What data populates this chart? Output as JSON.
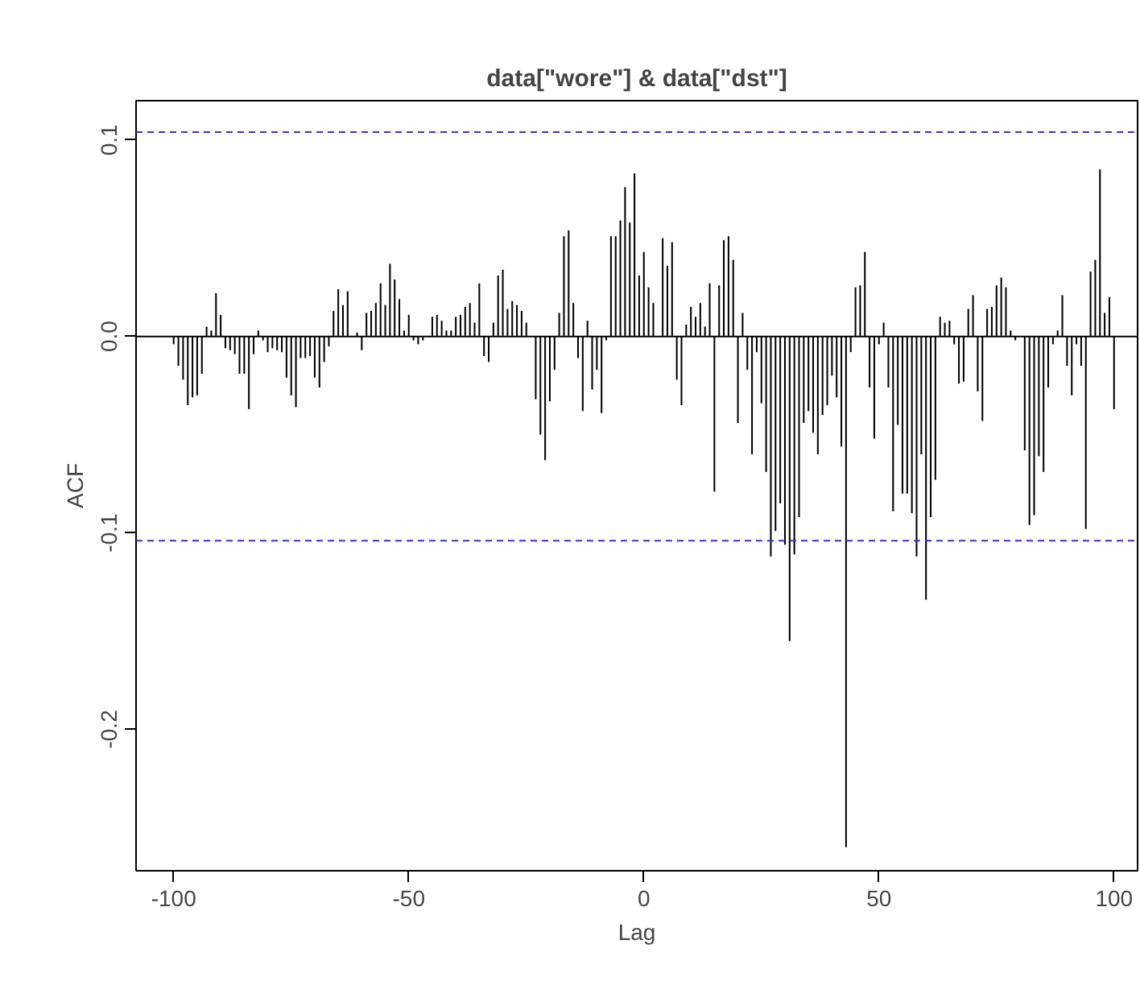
{
  "chart_data": {
    "type": "bar",
    "title": "data[\"wore\"] & data[\"dst\"]",
    "xlabel": "Lag",
    "ylabel": "ACF",
    "color": "#000000",
    "x": [
      -100,
      -99,
      -98,
      -97,
      -96,
      -95,
      -94,
      -93,
      -92,
      -91,
      -90,
      -89,
      -88,
      -87,
      -86,
      -85,
      -84,
      -83,
      -82,
      -81,
      -80,
      -79,
      -78,
      -77,
      -76,
      -75,
      -74,
      -73,
      -72,
      -71,
      -70,
      -69,
      -68,
      -67,
      -66,
      -65,
      -64,
      -63,
      -62,
      -61,
      -60,
      -59,
      -58,
      -57,
      -56,
      -55,
      -54,
      -53,
      -52,
      -51,
      -50,
      -49,
      -48,
      -47,
      -46,
      -45,
      -44,
      -43,
      -42,
      -41,
      -40,
      -39,
      -38,
      -37,
      -36,
      -35,
      -34,
      -33,
      -32,
      -31,
      -30,
      -29,
      -28,
      -27,
      -26,
      -25,
      -24,
      -23,
      -22,
      -21,
      -20,
      -19,
      -18,
      -17,
      -16,
      -15,
      -14,
      -13,
      -12,
      -11,
      -10,
      -9,
      -8,
      -7,
      -6,
      -5,
      -4,
      -3,
      -2,
      -1,
      0,
      1,
      2,
      3,
      4,
      5,
      6,
      7,
      8,
      9,
      10,
      11,
      12,
      13,
      14,
      15,
      16,
      17,
      18,
      19,
      20,
      21,
      22,
      23,
      24,
      25,
      26,
      27,
      28,
      29,
      30,
      31,
      32,
      33,
      34,
      35,
      36,
      37,
      38,
      39,
      40,
      41,
      42,
      43,
      44,
      45,
      46,
      47,
      48,
      49,
      50,
      51,
      52,
      53,
      54,
      55,
      56,
      57,
      58,
      59,
      60,
      61,
      62,
      63,
      64,
      65,
      66,
      67,
      68,
      69,
      70,
      71,
      72,
      73,
      74,
      75,
      76,
      77,
      78,
      79,
      80,
      81,
      82,
      83,
      84,
      85,
      86,
      87,
      88,
      89,
      90,
      91,
      92,
      93,
      94,
      95,
      96,
      97,
      98,
      99,
      100
    ],
    "values": [
      -0.004,
      -0.015,
      -0.022,
      -0.035,
      -0.031,
      -0.03,
      -0.019,
      0.005,
      0.003,
      0.022,
      0.011,
      -0.006,
      -0.007,
      -0.009,
      -0.019,
      -0.019,
      -0.037,
      -0.009,
      0.003,
      -0.002,
      -0.008,
      -0.006,
      -0.007,
      -0.008,
      -0.021,
      -0.03,
      -0.036,
      -0.011,
      -0.011,
      -0.01,
      -0.021,
      -0.026,
      -0.013,
      -0.005,
      0.013,
      0.024,
      0.016,
      0.023,
      null,
      0.002,
      -0.007,
      0.012,
      0.013,
      0.017,
      0.027,
      0.016,
      0.037,
      0.029,
      0.019,
      0.003,
      0.011,
      -0.002,
      -0.004,
      -0.002,
      0.0,
      0.01,
      0.011,
      0.008,
      0.003,
      0.003,
      0.01,
      0.011,
      0.015,
      0.017,
      0.007,
      0.027,
      -0.01,
      -0.013,
      0.007,
      0.031,
      0.034,
      0.014,
      0.018,
      0.016,
      0.013,
      0.007,
      null,
      -0.032,
      -0.05,
      -0.063,
      -0.033,
      -0.017,
      0.012,
      0.051,
      0.054,
      0.017,
      -0.011,
      -0.038,
      0.008,
      -0.027,
      -0.017,
      -0.039,
      -0.002,
      0.051,
      0.051,
      0.059,
      0.076,
      0.058,
      0.083,
      0.031,
      0.043,
      0.025,
      0.017,
      null,
      0.05,
      0.036,
      0.048,
      -0.022,
      -0.035,
      0.006,
      0.015,
      0.01,
      0.017,
      0.005,
      0.027,
      -0.079,
      0.026,
      0.049,
      0.051,
      0.039,
      -0.044,
      0.012,
      -0.017,
      -0.06,
      -0.008,
      -0.034,
      -0.069,
      -0.112,
      -0.099,
      -0.085,
      -0.106,
      -0.155,
      -0.111,
      -0.092,
      -0.044,
      -0.038,
      -0.049,
      -0.06,
      -0.04,
      -0.035,
      -0.02,
      -0.031,
      -0.056,
      -0.26,
      -0.008,
      0.025,
      0.026,
      0.043,
      -0.026,
      -0.052,
      -0.004,
      0.007,
      -0.026,
      -0.089,
      -0.045,
      -0.08,
      -0.08,
      -0.09,
      -0.112,
      -0.06,
      -0.134,
      -0.092,
      -0.073,
      0.01,
      0.007,
      0.008,
      -0.004,
      -0.024,
      -0.023,
      0.014,
      0.021,
      -0.028,
      -0.043,
      0.014,
      0.015,
      0.026,
      0.03,
      0.025,
      0.003,
      -0.002,
      0.0,
      -0.058,
      -0.096,
      -0.091,
      -0.061,
      -0.069,
      -0.026,
      -0.004,
      0.003,
      0.021,
      -0.015,
      -0.03,
      -0.004,
      -0.015,
      -0.098,
      0.033,
      0.039,
      0.085,
      0.012,
      0.02,
      -0.037
    ],
    "xlim": [
      -108,
      105
    ],
    "ylim": [
      -0.272,
      0.12
    ],
    "xticks": [
      -100,
      -50,
      0,
      50,
      100
    ],
    "yticks": [
      -0.2,
      -0.1,
      {
        "value": 0,
        "label": "0.0"
      },
      0.1
    ],
    "ref_lines": [
      {
        "axis": "y",
        "value": 0.104,
        "color": "#3333cc",
        "line_style": "dashed"
      },
      {
        "axis": "y",
        "value": -0.104,
        "color": "#3333cc",
        "line_style": "dashed"
      },
      {
        "axis": "y",
        "value": 0,
        "color": "#000000",
        "line_style": "solid"
      }
    ],
    "grid": false
  }
}
